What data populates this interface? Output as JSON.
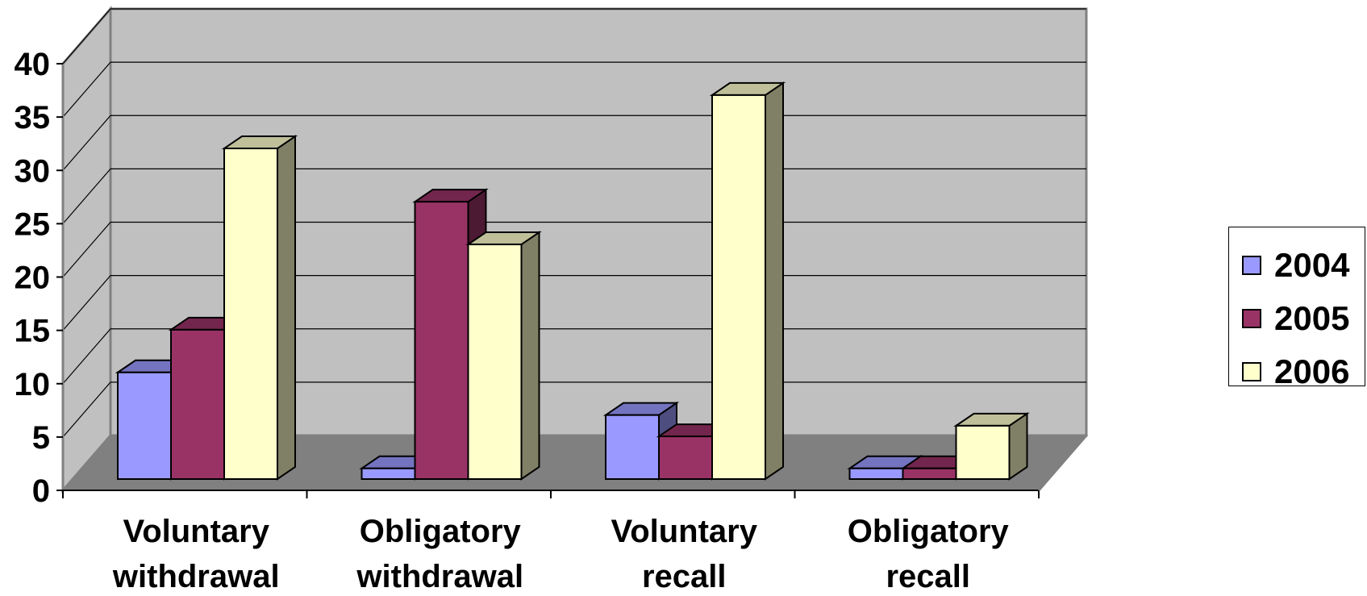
{
  "chart_data": {
    "type": "bar",
    "categories": [
      [
        "Voluntary",
        "withdrawal"
      ],
      [
        "Obligatory",
        "withdrawal"
      ],
      [
        "Voluntary",
        "recall"
      ],
      [
        "Obligatory",
        "recall"
      ]
    ],
    "series": [
      {
        "name": "2004",
        "values": [
          10,
          1,
          6,
          1
        ],
        "color": "#9999FF"
      },
      {
        "name": "2005",
        "values": [
          14,
          26,
          4,
          1
        ],
        "color": "#993366"
      },
      {
        "name": "2006",
        "values": [
          31,
          22,
          36,
          5
        ],
        "color": "#FFFFCC"
      }
    ],
    "ylim": [
      0,
      40
    ],
    "yticks": [
      "0",
      "5",
      "10",
      "15",
      "20",
      "25",
      "30",
      "35",
      "40"
    ],
    "grid": true,
    "legend_position": "right",
    "style": "3d-clustered-column",
    "wall_color": "#C0C0C0",
    "floor_color": "#808080"
  }
}
